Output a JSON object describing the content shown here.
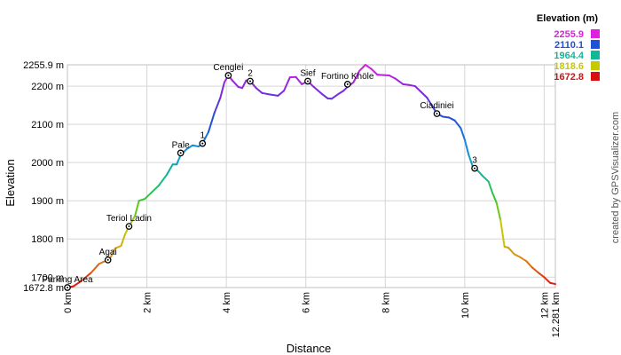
{
  "chart_data": {
    "type": "line",
    "xlabel": "Distance",
    "ylabel": "Elevation",
    "xlim": [
      0,
      12.281
    ],
    "ylim": [
      1672.8,
      2255.9
    ],
    "x_ticks": [
      {
        "value": 0,
        "label": "0 km"
      },
      {
        "value": 2,
        "label": "2 km"
      },
      {
        "value": 4,
        "label": "4 km"
      },
      {
        "value": 6,
        "label": "6 km"
      },
      {
        "value": 8,
        "label": "8 km"
      },
      {
        "value": 10,
        "label": "10 km"
      },
      {
        "value": 12,
        "label": "12 km"
      },
      {
        "value": 12.281,
        "label": "12.281 km"
      }
    ],
    "y_ticks": [
      {
        "value": 1672.8,
        "label": "1672.8 m"
      },
      {
        "value": 1700,
        "label": "1700 m"
      },
      {
        "value": 1800,
        "label": "1800 m"
      },
      {
        "value": 1900,
        "label": "1900 m"
      },
      {
        "value": 2000,
        "label": "2000 m"
      },
      {
        "value": 2100,
        "label": "2100 m"
      },
      {
        "value": 2200,
        "label": "2200 m"
      },
      {
        "value": 2255.9,
        "label": "2255.9 m"
      }
    ],
    "grid": true,
    "legend": {
      "title": "Elevation (m)",
      "placement": "top-right",
      "entries": [
        {
          "label": "2255.9",
          "color": "#e020e0"
        },
        {
          "label": "2110.1",
          "color": "#1e50d8"
        },
        {
          "label": "1964.4",
          "color": "#10b898"
        },
        {
          "label": "1818.6",
          "color": "#c8c800"
        },
        {
          "label": "1672.8",
          "color": "#d81010"
        }
      ]
    },
    "profile": [
      [
        0,
        1672.8
      ],
      [
        0.15,
        1676
      ],
      [
        0.35,
        1690
      ],
      [
        0.6,
        1712
      ],
      [
        0.8,
        1735
      ],
      [
        0.95,
        1742
      ],
      [
        1.05,
        1745
      ],
      [
        1.2,
        1775
      ],
      [
        1.35,
        1782
      ],
      [
        1.45,
        1812
      ],
      [
        1.55,
        1833
      ],
      [
        1.7,
        1860
      ],
      [
        1.8,
        1900
      ],
      [
        1.95,
        1905
      ],
      [
        2.1,
        1920
      ],
      [
        2.3,
        1940
      ],
      [
        2.5,
        1968
      ],
      [
        2.65,
        1995
      ],
      [
        2.75,
        1995
      ],
      [
        2.85,
        2020
      ],
      [
        3.0,
        2035
      ],
      [
        3.15,
        2045
      ],
      [
        3.3,
        2042
      ],
      [
        3.4,
        2050
      ],
      [
        3.55,
        2080
      ],
      [
        3.7,
        2130
      ],
      [
        3.85,
        2170
      ],
      [
        3.95,
        2210
      ],
      [
        4.05,
        2228
      ],
      [
        4.15,
        2215
      ],
      [
        4.3,
        2198
      ],
      [
        4.4,
        2195
      ],
      [
        4.5,
        2215
      ],
      [
        4.6,
        2213
      ],
      [
        4.75,
        2195
      ],
      [
        4.9,
        2182
      ],
      [
        5.1,
        2178
      ],
      [
        5.3,
        2175
      ],
      [
        5.45,
        2188
      ],
      [
        5.6,
        2223
      ],
      [
        5.75,
        2224
      ],
      [
        5.9,
        2205
      ],
      [
        6.05,
        2213
      ],
      [
        6.2,
        2198
      ],
      [
        6.4,
        2180
      ],
      [
        6.55,
        2168
      ],
      [
        6.65,
        2167
      ],
      [
        6.8,
        2178
      ],
      [
        6.95,
        2188
      ],
      [
        7.05,
        2198
      ],
      [
        7.2,
        2210
      ],
      [
        7.35,
        2240
      ],
      [
        7.5,
        2255.9
      ],
      [
        7.65,
        2245
      ],
      [
        7.8,
        2230
      ],
      [
        7.95,
        2229
      ],
      [
        8.1,
        2228
      ],
      [
        8.25,
        2220
      ],
      [
        8.45,
        2205
      ],
      [
        8.6,
        2203
      ],
      [
        8.75,
        2200
      ],
      [
        8.9,
        2185
      ],
      [
        9.05,
        2170
      ],
      [
        9.2,
        2145
      ],
      [
        9.3,
        2128
      ],
      [
        9.45,
        2120
      ],
      [
        9.6,
        2118
      ],
      [
        9.75,
        2110
      ],
      [
        9.9,
        2090
      ],
      [
        10.0,
        2060
      ],
      [
        10.1,
        2020
      ],
      [
        10.2,
        1990
      ],
      [
        10.3,
        1982
      ],
      [
        10.45,
        1965
      ],
      [
        10.6,
        1950
      ],
      [
        10.7,
        1920
      ],
      [
        10.8,
        1895
      ],
      [
        10.9,
        1850
      ],
      [
        11.0,
        1780
      ],
      [
        11.1,
        1777
      ],
      [
        11.25,
        1760
      ],
      [
        11.4,
        1752
      ],
      [
        11.55,
        1742
      ],
      [
        11.7,
        1725
      ],
      [
        11.85,
        1712
      ],
      [
        12.0,
        1700
      ],
      [
        12.15,
        1685
      ],
      [
        12.281,
        1682
      ]
    ],
    "waypoints": [
      {
        "name": "Parking Area",
        "x": 0.0,
        "y": 1672.8
      },
      {
        "name": "Agai",
        "x": 1.02,
        "y": 1745
      },
      {
        "name": "Teriol Ladin",
        "x": 1.55,
        "y": 1833
      },
      {
        "name": "Pale",
        "x": 2.85,
        "y": 2025
      },
      {
        "name": "1",
        "x": 3.4,
        "y": 2050
      },
      {
        "name": "Cenglei",
        "x": 4.05,
        "y": 2228
      },
      {
        "name": "2",
        "x": 4.6,
        "y": 2213
      },
      {
        "name": "Sief",
        "x": 6.05,
        "y": 2213
      },
      {
        "name": "Fortino Khöle",
        "x": 7.05,
        "y": 2205
      },
      {
        "name": "Ciadiniei",
        "x": 9.3,
        "y": 2128
      },
      {
        "name": "3",
        "x": 10.25,
        "y": 1985
      }
    ]
  },
  "credit": "created by GPSVisualizer.com"
}
